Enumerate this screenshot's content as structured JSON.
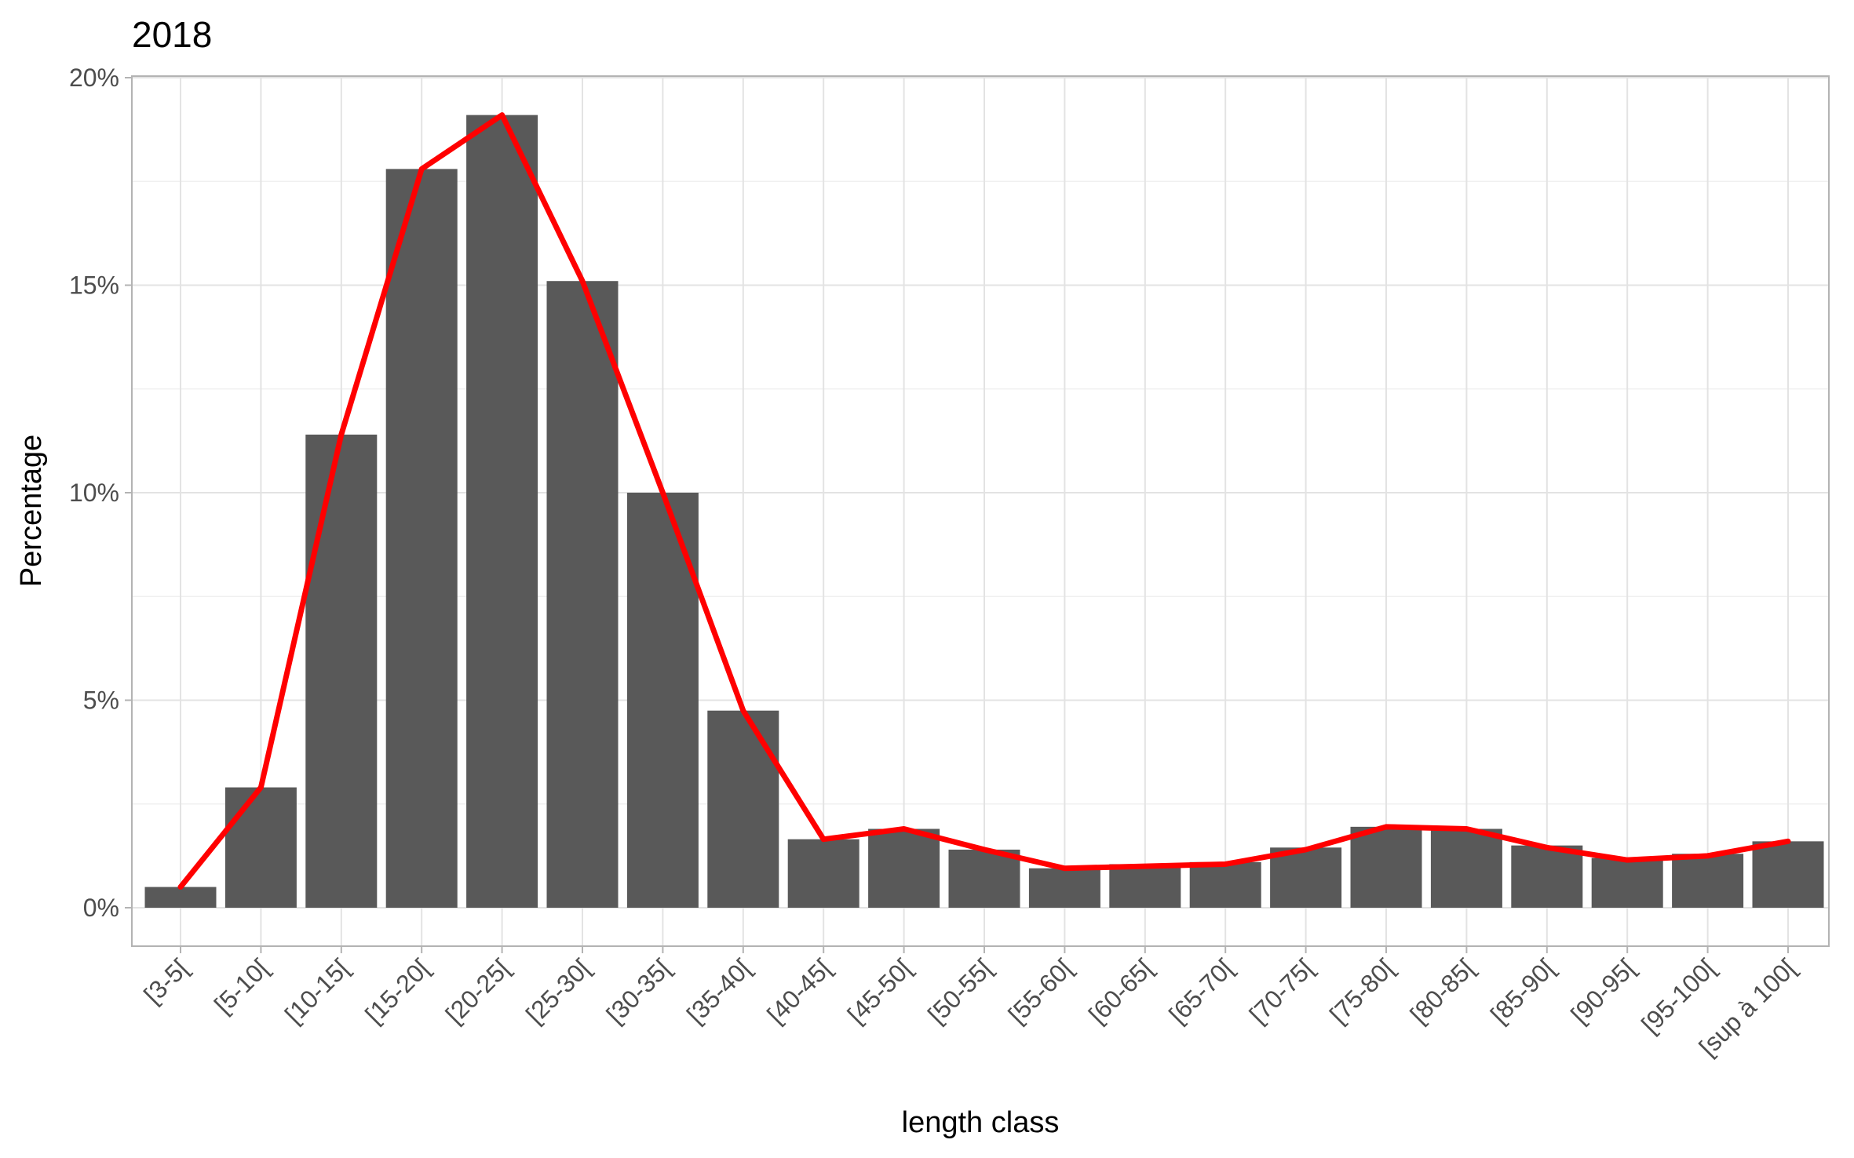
{
  "chart_data": {
    "type": "bar",
    "title": "2018",
    "xlabel": "length class",
    "ylabel": "Percentage",
    "ylim": [
      0,
      20
    ],
    "yticks": [
      0,
      5,
      10,
      15,
      20
    ],
    "ytick_labels": [
      "0%",
      "5%",
      "10%",
      "15%",
      "20%"
    ],
    "grid": true,
    "categories": [
      "[3-5[",
      "[5-10[",
      "[10-15[",
      "[15-20[",
      "[20-25[",
      "[25-30[",
      "[30-35[",
      "[35-40[",
      "[40-45[",
      "[45-50[",
      "[50-55[",
      "[55-60[",
      "[60-65[",
      "[65-70[",
      "[70-75[",
      "[75-80[",
      "[80-85[",
      "[85-90[",
      "[90-95[",
      "[95-100[",
      "[sup à 100["
    ],
    "series": [
      {
        "type": "bar",
        "color": "#595959",
        "values": [
          0.5,
          2.9,
          11.4,
          17.8,
          19.1,
          15.1,
          10.0,
          4.75,
          1.65,
          1.9,
          1.4,
          0.95,
          1.05,
          1.1,
          1.45,
          1.95,
          1.9,
          1.5,
          1.2,
          1.3,
          1.6
        ]
      },
      {
        "type": "line",
        "color": "#ff0000",
        "values": [
          0.5,
          2.9,
          11.4,
          17.8,
          19.1,
          15.1,
          10.0,
          4.75,
          1.65,
          1.9,
          1.4,
          0.95,
          1.0,
          1.05,
          1.4,
          1.95,
          1.9,
          1.45,
          1.15,
          1.25,
          1.6
        ]
      }
    ]
  }
}
